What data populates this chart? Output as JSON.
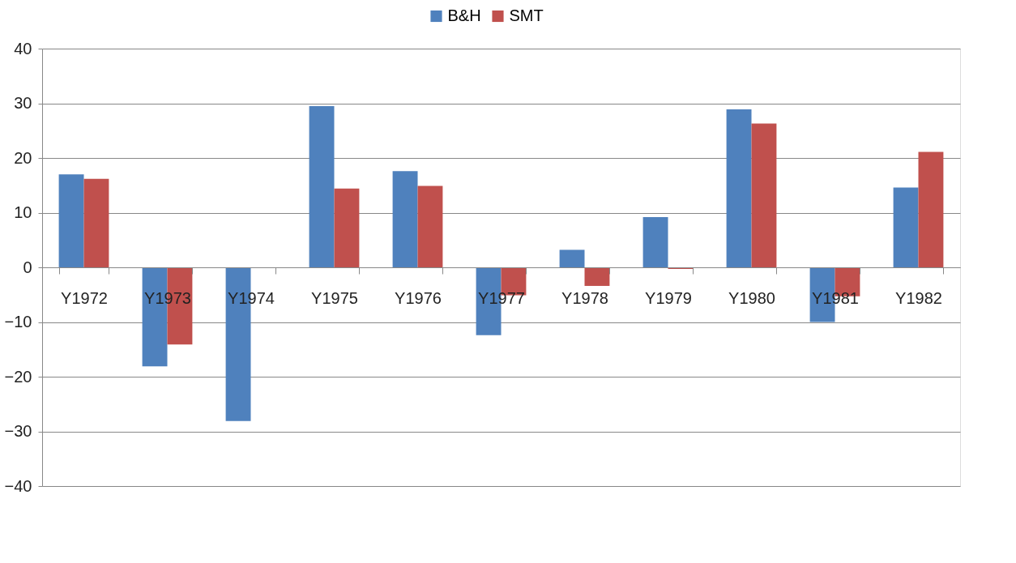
{
  "chart_data": {
    "type": "bar",
    "categories": [
      "Y1972",
      "Y1973",
      "Y1974",
      "Y1975",
      "Y1976",
      "Y1977",
      "Y1978",
      "Y1979",
      "Y1980",
      "Y1981",
      "Y1982"
    ],
    "series": [
      {
        "name": "B&H",
        "color": "#4f81bd",
        "values": [
          17.0,
          -18.1,
          -28.1,
          29.5,
          17.6,
          -12.4,
          3.2,
          9.2,
          28.9,
          -10.0,
          14.6
        ]
      },
      {
        "name": "SMT",
        "color": "#c0504d",
        "values": [
          16.2,
          -14.1,
          0,
          14.4,
          14.9,
          -5.1,
          -3.4,
          -0.3,
          26.3,
          -5.3,
          21.1
        ]
      }
    ],
    "ylim": [
      -40,
      40
    ],
    "yticks": [
      -40,
      -30,
      -20,
      -10,
      0,
      10,
      20,
      30,
      40
    ],
    "grid": "y",
    "legend": "top"
  }
}
